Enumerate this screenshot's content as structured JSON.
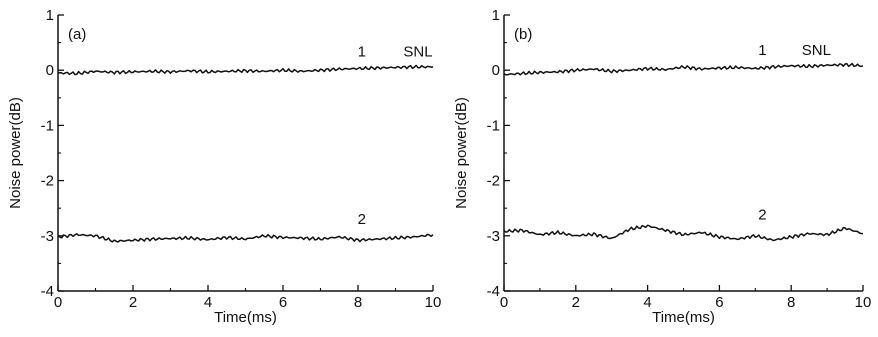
{
  "chart_data": [
    {
      "type": "line",
      "panel_label": "(a)",
      "xlabel": "Time(ms)",
      "ylabel": "Noise power(dB)",
      "xlim": [
        0,
        10
      ],
      "ylim": [
        -4,
        1
      ],
      "xticks": [
        "0",
        "2",
        "4",
        "6",
        "8",
        "10"
      ],
      "yticks": [
        "1",
        "0",
        "-1",
        "-2",
        "-3",
        "-4"
      ],
      "grid": false,
      "series": [
        {
          "name": "1",
          "annotation": "SNL",
          "x": [
            0,
            0.5,
            1,
            1.5,
            2,
            2.5,
            3,
            3.5,
            4,
            4.5,
            5,
            5.5,
            6,
            6.5,
            7,
            7.5,
            8,
            8.5,
            9,
            9.5,
            10
          ],
          "y": [
            -0.05,
            -0.06,
            -0.02,
            -0.04,
            -0.03,
            -0.02,
            -0.03,
            -0.01,
            -0.03,
            -0.02,
            -0.01,
            -0.02,
            0.0,
            -0.02,
            0.0,
            0.02,
            0.03,
            0.04,
            0.05,
            0.06,
            0.06
          ]
        },
        {
          "name": "2",
          "x": [
            0,
            0.5,
            1,
            1.5,
            2,
            2.5,
            3,
            3.5,
            4,
            4.5,
            5,
            5.5,
            6,
            6.5,
            7,
            7.5,
            8,
            8.5,
            9,
            9.5,
            10
          ],
          "y": [
            -3.02,
            -2.98,
            -3.0,
            -3.1,
            -3.08,
            -3.06,
            -3.05,
            -3.04,
            -3.07,
            -3.03,
            -3.06,
            -3.0,
            -3.03,
            -3.04,
            -3.06,
            -3.02,
            -3.08,
            -3.06,
            -3.04,
            -3.02,
            -2.98
          ]
        }
      ]
    },
    {
      "type": "line",
      "panel_label": "(b)",
      "xlabel": "Time(ms)",
      "ylabel": "Noise power(dB)",
      "xlim": [
        0,
        10
      ],
      "ylim": [
        -4,
        1
      ],
      "xticks": [
        "0",
        "2",
        "4",
        "6",
        "8",
        "10"
      ],
      "yticks": [
        "1",
        "0",
        "-1",
        "-2",
        "-3",
        "-4"
      ],
      "grid": false,
      "series": [
        {
          "name": "1",
          "annotation": "SNL",
          "x": [
            0,
            0.5,
            1,
            1.5,
            2,
            2.5,
            3,
            3.5,
            4,
            4.5,
            5,
            5.5,
            6,
            6.5,
            7,
            7.5,
            8,
            8.5,
            9,
            9.5,
            10
          ],
          "y": [
            -0.08,
            -0.06,
            -0.04,
            -0.03,
            0.0,
            0.02,
            -0.02,
            0.0,
            0.03,
            0.01,
            0.06,
            0.02,
            0.04,
            0.05,
            0.03,
            0.06,
            0.08,
            0.07,
            0.09,
            0.1,
            0.08
          ]
        },
        {
          "name": "2",
          "x": [
            0,
            0.5,
            1,
            1.5,
            2,
            2.5,
            3,
            3.5,
            4,
            4.5,
            5,
            5.5,
            6,
            6.5,
            7,
            7.5,
            8,
            8.5,
            9,
            9.5,
            10
          ],
          "y": [
            -2.92,
            -2.9,
            -2.98,
            -2.94,
            -3.0,
            -2.97,
            -3.05,
            -2.88,
            -2.82,
            -2.9,
            -2.98,
            -2.94,
            -3.02,
            -3.06,
            -3.0,
            -3.08,
            -3.02,
            -2.96,
            -2.98,
            -2.86,
            -2.96
          ]
        }
      ]
    }
  ]
}
